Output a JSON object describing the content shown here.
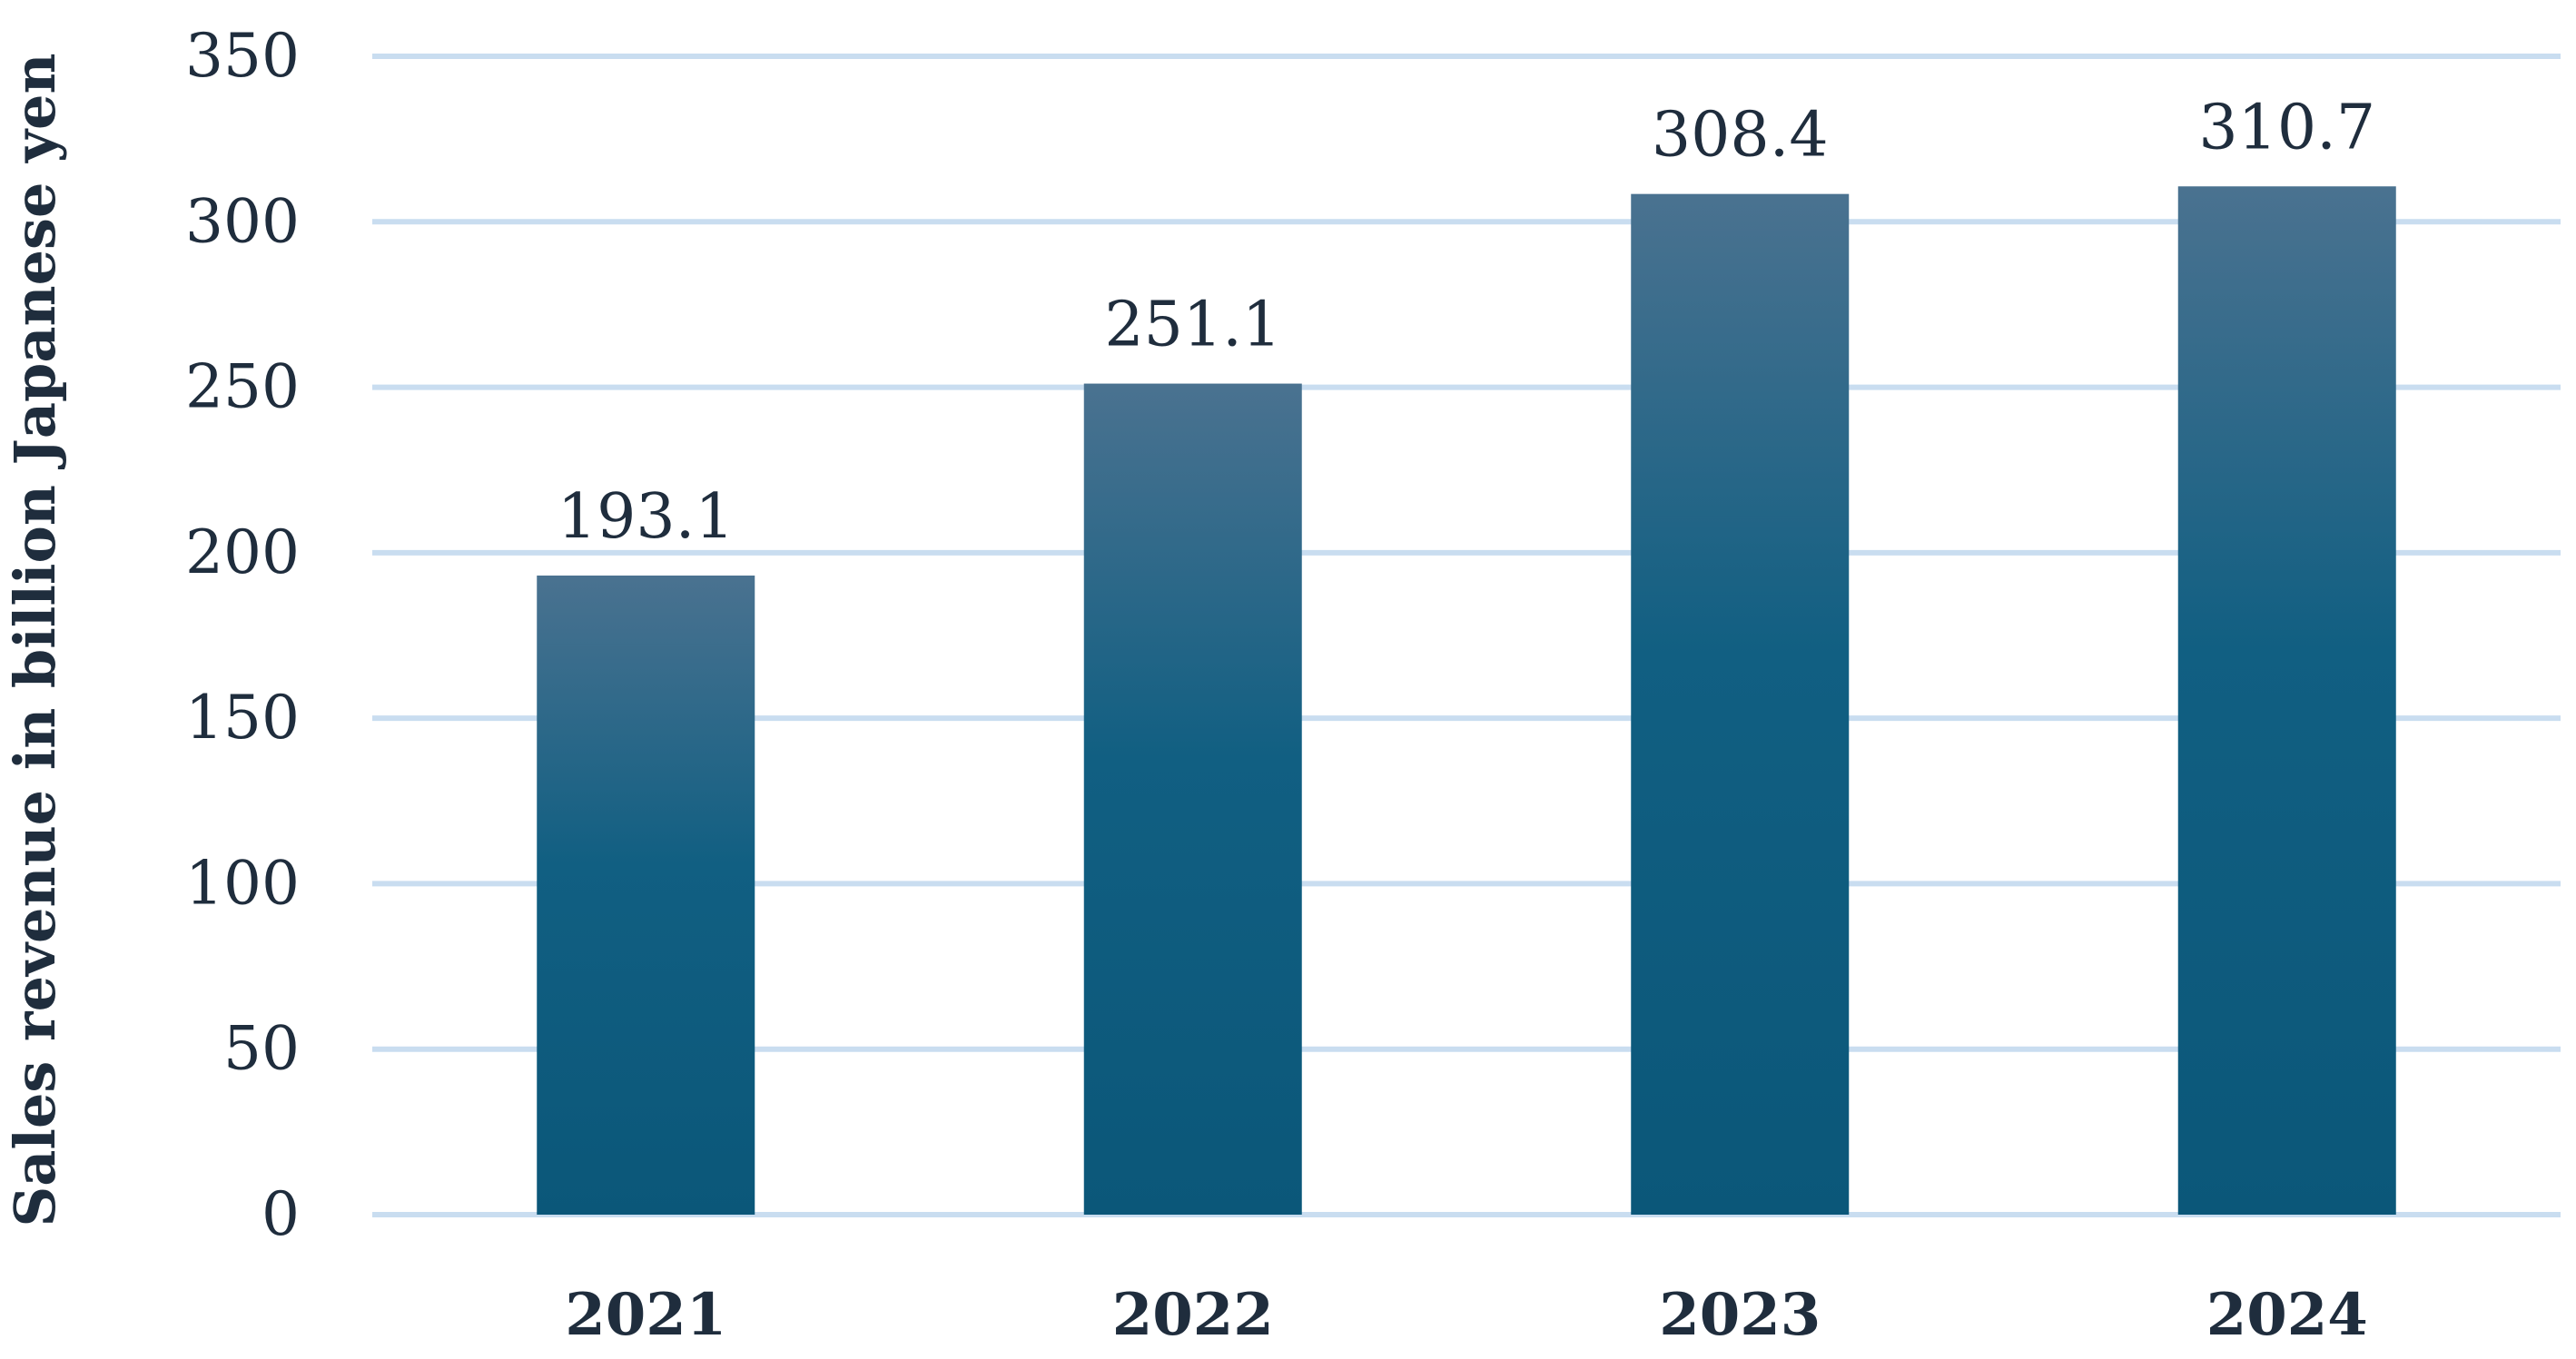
{
  "chart_data": {
    "type": "bar",
    "title": "",
    "xlabel": "",
    "ylabel": "Sales revenue in billion Japanese yen",
    "categories": [
      "2021",
      "2022",
      "2023",
      "2024"
    ],
    "values": [
      193.1,
      251.1,
      308.4,
      310.7
    ],
    "data_labels": [
      "193.1",
      "251.1",
      "308.4",
      "310.7"
    ],
    "ylim": [
      0,
      350
    ],
    "yticks": [
      0,
      50,
      100,
      150,
      200,
      250,
      300,
      350
    ],
    "grid": true,
    "legend": "none",
    "colors": {
      "bar_top": "#4a7290",
      "bar_bottom": "#0b5779",
      "grid": "#c9ddf0",
      "text": "#1f2d3d"
    }
  }
}
